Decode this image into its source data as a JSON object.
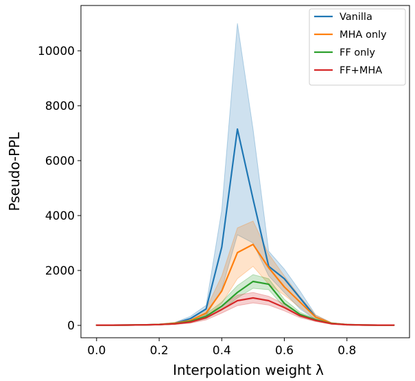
{
  "chart_data": {
    "type": "line",
    "title": "",
    "xlabel": "Interpolation weight λ",
    "ylabel": "Pseudo-PPL",
    "xlim": [
      -0.05,
      1.0
    ],
    "ylim": [
      -450,
      11650
    ],
    "xticks": [
      0.0,
      0.2,
      0.4,
      0.6,
      0.8
    ],
    "xtick_labels": [
      "0.0",
      "0.2",
      "0.4",
      "0.6",
      "0.8"
    ],
    "yticks": [
      0,
      2000,
      4000,
      6000,
      8000,
      10000
    ],
    "ytick_labels": [
      "0",
      "2000",
      "4000",
      "6000",
      "8000",
      "10000"
    ],
    "grid": false,
    "legend_position": "top-right",
    "x": [
      0.0,
      0.05,
      0.1,
      0.15,
      0.2,
      0.25,
      0.3,
      0.35,
      0.4,
      0.45,
      0.5,
      0.55,
      0.6,
      0.65,
      0.7,
      0.75,
      0.8,
      0.85,
      0.9,
      0.95
    ],
    "series": [
      {
        "name": "Vanilla",
        "color": "#1f77b4",
        "values": [
          10,
          10,
          12,
          18,
          35,
          75,
          250,
          600,
          2850,
          7150,
          4600,
          2150,
          1700,
          1000,
          300,
          80,
          30,
          15,
          10,
          10
        ],
        "lower": [
          5,
          5,
          6,
          10,
          20,
          45,
          150,
          350,
          1300,
          3300,
          3000,
          1800,
          1200,
          600,
          200,
          60,
          20,
          10,
          6,
          5
        ],
        "upper": [
          15,
          15,
          18,
          26,
          50,
          110,
          330,
          730,
          4200,
          11000,
          7150,
          2700,
          2050,
          1250,
          380,
          100,
          40,
          20,
          14,
          14
        ]
      },
      {
        "name": "MHA only",
        "color": "#ff7f0e",
        "values": [
          10,
          10,
          12,
          18,
          35,
          75,
          180,
          450,
          1250,
          2650,
          2950,
          2100,
          1400,
          850,
          300,
          80,
          30,
          15,
          10,
          10
        ],
        "lower": [
          5,
          5,
          6,
          10,
          20,
          45,
          120,
          300,
          800,
          1700,
          2150,
          1500,
          1100,
          650,
          220,
          60,
          20,
          10,
          6,
          5
        ],
        "upper": [
          15,
          15,
          18,
          26,
          50,
          110,
          250,
          600,
          1800,
          3550,
          3800,
          2600,
          1800,
          1050,
          380,
          100,
          40,
          20,
          14,
          14
        ]
      },
      {
        "name": "FF only",
        "color": "#2ca02c",
        "values": [
          10,
          10,
          12,
          18,
          30,
          60,
          150,
          330,
          700,
          1200,
          1600,
          1500,
          800,
          400,
          200,
          70,
          25,
          12,
          10,
          10
        ],
        "lower": [
          5,
          5,
          6,
          10,
          18,
          40,
          100,
          250,
          550,
          1000,
          1350,
          1300,
          650,
          320,
          160,
          50,
          18,
          8,
          6,
          5
        ],
        "upper": [
          15,
          15,
          18,
          26,
          42,
          85,
          200,
          420,
          850,
          1450,
          1850,
          1700,
          950,
          480,
          240,
          90,
          32,
          16,
          14,
          14
        ]
      },
      {
        "name": "FF+MHA",
        "color": "#d62728",
        "values": [
          10,
          10,
          12,
          18,
          30,
          55,
          120,
          280,
          580,
          900,
          1000,
          900,
          650,
          350,
          180,
          60,
          25,
          12,
          10,
          10
        ],
        "lower": [
          5,
          5,
          6,
          10,
          18,
          35,
          80,
          200,
          450,
          720,
          820,
          740,
          530,
          280,
          140,
          45,
          18,
          8,
          6,
          5
        ],
        "upper": [
          15,
          15,
          18,
          26,
          42,
          78,
          160,
          360,
          720,
          1100,
          1200,
          1060,
          770,
          420,
          220,
          75,
          32,
          16,
          14,
          14
        ]
      }
    ]
  }
}
